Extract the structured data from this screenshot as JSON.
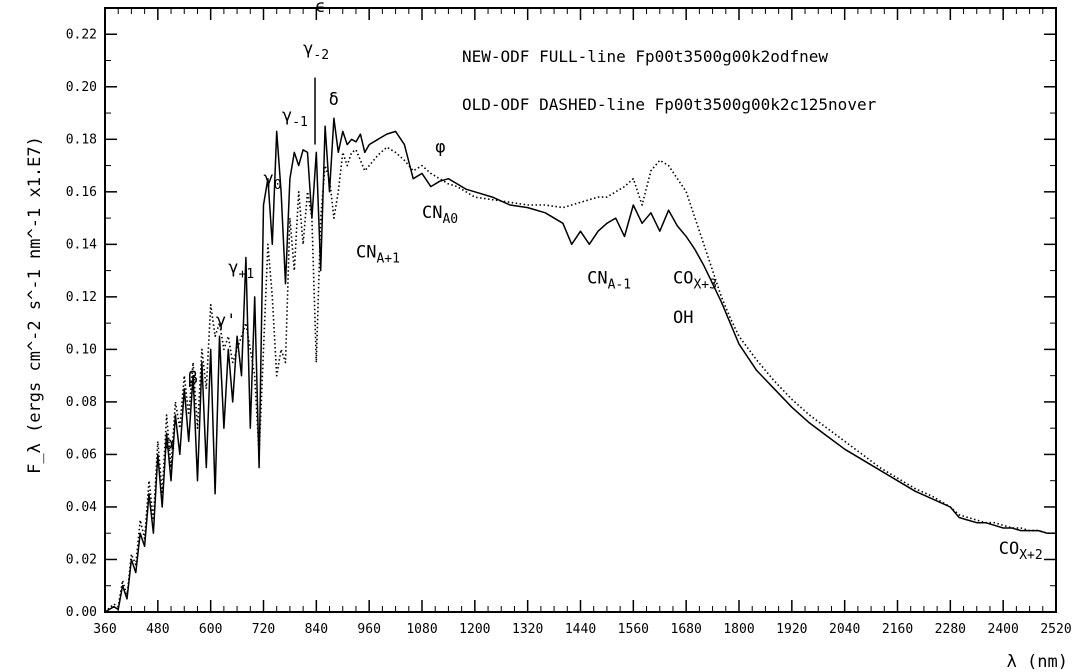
{
  "chart_data": {
    "type": "line",
    "xlabel": "λ  (nm)",
    "ylabel": "F_λ (ergs cm^-2 s^-1 nm^-1 x1.E7)",
    "xlim": [
      360,
      2520
    ],
    "ylim": [
      0.0,
      0.23
    ],
    "x_ticks": [
      360,
      480,
      600,
      720,
      840,
      960,
      1080,
      1200,
      1320,
      1440,
      1560,
      1680,
      1800,
      1920,
      2040,
      2160,
      2280,
      2400,
      2520
    ],
    "y_ticks": [
      0.0,
      0.02,
      0.04,
      0.06,
      0.08,
      0.1,
      0.12,
      0.14,
      0.16,
      0.18,
      0.2,
      0.22
    ],
    "grid": false,
    "legend": [
      {
        "text": "NEW-ODF FULL-line    Fp00t3500g00k2odfnew",
        "style": "solid"
      },
      {
        "text": "OLD-ODF DASHED-line Fp00t3500g00k2c125nover",
        "style": "dotted"
      }
    ],
    "series": [
      {
        "style": "solid",
        "x": [
          360,
          380,
          390,
          400,
          410,
          420,
          430,
          440,
          450,
          460,
          470,
          480,
          490,
          500,
          510,
          520,
          530,
          540,
          550,
          560,
          570,
          580,
          590,
          600,
          610,
          620,
          630,
          640,
          650,
          660,
          670,
          680,
          690,
          700,
          710,
          720,
          730,
          740,
          750,
          760,
          770,
          780,
          790,
          800,
          810,
          820,
          830,
          840,
          850,
          860,
          870,
          880,
          890,
          900,
          910,
          920,
          930,
          940,
          950,
          960,
          980,
          1000,
          1020,
          1040,
          1060,
          1080,
          1100,
          1120,
          1140,
          1160,
          1180,
          1200,
          1240,
          1280,
          1320,
          1360,
          1400,
          1420,
          1440,
          1460,
          1480,
          1500,
          1520,
          1540,
          1560,
          1580,
          1600,
          1620,
          1640,
          1660,
          1680,
          1700,
          1720,
          1740,
          1760,
          1780,
          1800,
          1840,
          1880,
          1920,
          1960,
          2000,
          2040,
          2080,
          2120,
          2160,
          2200,
          2240,
          2280,
          2300,
          2320,
          2340,
          2360,
          2380,
          2400,
          2420,
          2440,
          2460,
          2480,
          2500,
          2520
        ],
        "y": [
          0.0,
          0.002,
          0.001,
          0.01,
          0.005,
          0.02,
          0.015,
          0.03,
          0.025,
          0.045,
          0.03,
          0.06,
          0.04,
          0.068,
          0.05,
          0.075,
          0.06,
          0.085,
          0.065,
          0.09,
          0.05,
          0.095,
          0.055,
          0.1,
          0.045,
          0.105,
          0.07,
          0.1,
          0.08,
          0.105,
          0.09,
          0.135,
          0.07,
          0.12,
          0.055,
          0.155,
          0.165,
          0.14,
          0.183,
          0.16,
          0.125,
          0.165,
          0.175,
          0.17,
          0.176,
          0.175,
          0.15,
          0.175,
          0.13,
          0.185,
          0.16,
          0.188,
          0.175,
          0.183,
          0.178,
          0.18,
          0.179,
          0.182,
          0.175,
          0.178,
          0.18,
          0.182,
          0.183,
          0.178,
          0.165,
          0.167,
          0.162,
          0.164,
          0.165,
          0.163,
          0.161,
          0.16,
          0.158,
          0.155,
          0.154,
          0.152,
          0.148,
          0.14,
          0.145,
          0.14,
          0.145,
          0.148,
          0.15,
          0.143,
          0.155,
          0.148,
          0.152,
          0.145,
          0.153,
          0.147,
          0.143,
          0.138,
          0.132,
          0.125,
          0.118,
          0.11,
          0.102,
          0.092,
          0.085,
          0.078,
          0.072,
          0.067,
          0.062,
          0.058,
          0.054,
          0.05,
          0.046,
          0.043,
          0.04,
          0.036,
          0.035,
          0.034,
          0.034,
          0.033,
          0.032,
          0.032,
          0.031,
          0.031,
          0.031,
          0.03,
          0.03
        ]
      },
      {
        "style": "dotted",
        "x": [
          360,
          380,
          390,
          400,
          410,
          420,
          430,
          440,
          450,
          460,
          470,
          480,
          490,
          500,
          510,
          520,
          530,
          540,
          550,
          560,
          570,
          580,
          590,
          600,
          610,
          620,
          630,
          640,
          650,
          660,
          670,
          680,
          690,
          700,
          710,
          720,
          730,
          740,
          750,
          760,
          770,
          780,
          790,
          800,
          810,
          820,
          830,
          840,
          850,
          860,
          870,
          880,
          890,
          900,
          910,
          920,
          930,
          940,
          950,
          960,
          980,
          1000,
          1020,
          1040,
          1060,
          1080,
          1100,
          1120,
          1140,
          1160,
          1180,
          1200,
          1240,
          1280,
          1320,
          1360,
          1400,
          1420,
          1440,
          1460,
          1480,
          1500,
          1520,
          1540,
          1560,
          1580,
          1600,
          1620,
          1640,
          1660,
          1680,
          1700,
          1720,
          1740,
          1760,
          1780,
          1800,
          1840,
          1880,
          1920,
          1960,
          2000,
          2040,
          2080,
          2120,
          2160,
          2200,
          2240,
          2280,
          2300,
          2320,
          2340,
          2360,
          2380,
          2400,
          2420,
          2440,
          2460,
          2480,
          2500,
          2520
        ],
        "y": [
          0.0,
          0.003,
          0.002,
          0.012,
          0.006,
          0.022,
          0.018,
          0.035,
          0.028,
          0.05,
          0.035,
          0.065,
          0.045,
          0.075,
          0.055,
          0.08,
          0.07,
          0.09,
          0.075,
          0.095,
          0.07,
          0.1,
          0.085,
          0.117,
          0.105,
          0.11,
          0.1,
          0.105,
          0.095,
          0.1,
          0.105,
          0.11,
          0.1,
          0.09,
          0.06,
          0.1,
          0.14,
          0.12,
          0.09,
          0.1,
          0.095,
          0.15,
          0.13,
          0.16,
          0.14,
          0.16,
          0.15,
          0.095,
          0.15,
          0.17,
          0.165,
          0.15,
          0.16,
          0.175,
          0.17,
          0.175,
          0.176,
          0.172,
          0.168,
          0.17,
          0.174,
          0.177,
          0.175,
          0.172,
          0.168,
          0.17,
          0.167,
          0.165,
          0.163,
          0.162,
          0.16,
          0.158,
          0.157,
          0.156,
          0.155,
          0.155,
          0.154,
          0.155,
          0.156,
          0.157,
          0.158,
          0.158,
          0.16,
          0.162,
          0.165,
          0.155,
          0.168,
          0.172,
          0.17,
          0.165,
          0.16,
          0.15,
          0.14,
          0.13,
          0.12,
          0.112,
          0.105,
          0.096,
          0.088,
          0.081,
          0.075,
          0.07,
          0.065,
          0.06,
          0.055,
          0.051,
          0.047,
          0.044,
          0.04,
          0.037,
          0.036,
          0.035,
          0.034,
          0.034,
          0.033,
          0.032,
          0.032,
          0.031,
          0.031,
          0.03,
          0.03
        ]
      }
    ],
    "annotations": [
      {
        "id": "alpha",
        "text": "α",
        "x": 495,
        "y": 0.062
      },
      {
        "id": "beta",
        "text": "β",
        "x": 548,
        "y": 0.087
      },
      {
        "id": "gamma-prime",
        "text": "γ'",
        "x": 612,
        "y": 0.109
      },
      {
        "id": "gamma-plus1",
        "text": "γ+1",
        "x": 640,
        "y": 0.129
      },
      {
        "id": "gamma-0",
        "text": "γ0",
        "x": 720,
        "y": 0.163
      },
      {
        "id": "gamma-minus1",
        "text": "γ-1",
        "x": 762,
        "y": 0.187
      },
      {
        "id": "gamma-minus2",
        "text": "γ-2",
        "x": 810,
        "y": 0.2125
      },
      {
        "id": "epsilon",
        "text": "ϵ",
        "x": 837,
        "y": 0.2285
      },
      {
        "id": "delta",
        "text": "δ",
        "x": 868,
        "y": 0.193
      },
      {
        "id": "phi",
        "text": "φ",
        "x": 1110,
        "y": 0.175
      },
      {
        "id": "cn-a0",
        "text": "CNA0",
        "x": 1080,
        "y": 0.15
      },
      {
        "id": "cn-a-plus1",
        "text": "CNA+1",
        "x": 930,
        "y": 0.135
      },
      {
        "id": "cn-a-minus1",
        "text": "CNA-1",
        "x": 1455,
        "y": 0.125
      },
      {
        "id": "co-x-plus3",
        "text": "COX+3",
        "x": 1650,
        "y": 0.125
      },
      {
        "id": "oh",
        "text": "OH",
        "x": 1650,
        "y": 0.11
      },
      {
        "id": "co-x-plus2",
        "text": "COX+2",
        "x": 2390,
        "y": 0.022
      }
    ]
  }
}
